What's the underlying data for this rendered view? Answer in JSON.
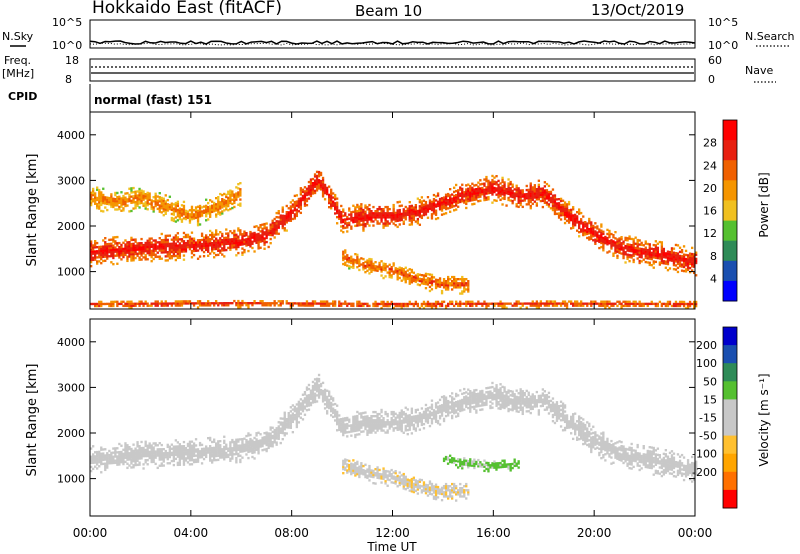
{
  "header": {
    "station": "Hokkaido East (fitACF)",
    "beam": "Beam 10",
    "date": "13/Oct/2019"
  },
  "top_panel": {
    "nsky_label": "N.Sky",
    "nsky_ticks": [
      "10^5",
      "10^0"
    ],
    "nsearch_label": "N.Search",
    "nsearch_ticks": [
      "10^5",
      "10^0"
    ],
    "freq_label": "Freq.",
    "freq_unit": "[MHz]",
    "freq_ticks": [
      "18",
      "8"
    ],
    "nave_label": "Nave",
    "nave_ticks": [
      "60",
      "0"
    ],
    "cpid_label": "CPID",
    "cpid_value": "normal (fast) 151"
  },
  "colors": {
    "power_scale": [
      "#0000ff",
      "#1a4fb0",
      "#2e8b57",
      "#55c030",
      "#f0c020",
      "#f59500",
      "#f06000",
      "#e82010",
      "#ff0000"
    ],
    "velocity_scale": [
      "#ff0000",
      "#ff7000",
      "#ffa500",
      "#ffc030",
      "#c8c8c8",
      "#c8c8c8",
      "#55c030",
      "#2e8b57",
      "#1a4fb0",
      "#0000cc"
    ]
  },
  "chart_data": [
    {
      "type": "heatmap",
      "name": "power",
      "xlabel": "",
      "ylabel": "Slant Range [km]",
      "ylim": [
        180,
        4500
      ],
      "yticks": [
        "1000",
        "2000",
        "3000",
        "4000"
      ],
      "colorbar": {
        "label": "Power [dB]",
        "range": [
          0,
          32
        ],
        "ticks": [
          "4",
          "8",
          "12",
          "16",
          "20",
          "24",
          "28"
        ]
      },
      "bands": [
        {
          "x": [
            0,
            2,
            4,
            6,
            7,
            8,
            9,
            9.5,
            10,
            11,
            12,
            13,
            14,
            15,
            16,
            17,
            18,
            19,
            20,
            21,
            22,
            23,
            24
          ],
          "center": [
            1400,
            1500,
            1550,
            1650,
            1800,
            2300,
            3000,
            2600,
            2100,
            2200,
            2200,
            2300,
            2500,
            2700,
            2800,
            2650,
            2700,
            2200,
            1800,
            1500,
            1400,
            1300,
            1200
          ],
          "width": 300,
          "power": 26
        },
        {
          "x": [
            0,
            1,
            2,
            3,
            4,
            5,
            6
          ],
          "center": [
            2600,
            2500,
            2600,
            2400,
            2200,
            2400,
            2700
          ],
          "width": 250,
          "power": 20
        },
        {
          "x": [
            10,
            11,
            12,
            13,
            14,
            15
          ],
          "center": [
            1300,
            1100,
            1000,
            800,
            700,
            700
          ],
          "width": 200,
          "power": 22
        },
        {
          "x": [
            0,
            6,
            12,
            18,
            24
          ],
          "center": [
            260,
            280,
            260,
            270,
            260
          ],
          "width": 80,
          "power": 24
        }
      ]
    },
    {
      "type": "heatmap",
      "name": "velocity",
      "xlabel": "Time UT",
      "ylabel": "Slant Range [km]",
      "xticks": [
        "00:00",
        "04:00",
        "08:00",
        "12:00",
        "16:00",
        "20:00",
        "00:00"
      ],
      "xlim": [
        0,
        24
      ],
      "ylim": [
        180,
        4500
      ],
      "yticks": [
        "1000",
        "2000",
        "3000",
        "4000"
      ],
      "colorbar": {
        "label": "Velocity [m s⁻¹]",
        "range": [
          -250,
          250
        ],
        "ticks": [
          "200",
          "100",
          "50",
          "15",
          "-15",
          "-50",
          "-100",
          "-200"
        ]
      },
      "bands": [
        {
          "x": [
            0,
            2,
            4,
            6,
            7,
            8,
            9,
            9.5,
            10,
            11,
            12,
            13,
            14,
            15,
            16,
            17,
            18,
            19,
            20,
            21,
            22,
            23,
            24
          ],
          "center": [
            1400,
            1500,
            1550,
            1650,
            1800,
            2300,
            3000,
            2600,
            2100,
            2200,
            2200,
            2300,
            2500,
            2700,
            2800,
            2650,
            2700,
            2200,
            1800,
            1500,
            1400,
            1300,
            1200
          ],
          "width": 300,
          "velocity": 0
        },
        {
          "x": [
            10,
            11,
            12,
            13,
            14,
            15
          ],
          "center": [
            1300,
            1100,
            1000,
            800,
            700,
            700
          ],
          "width": 200,
          "velocity": -40
        },
        {
          "x": [
            14,
            15,
            16,
            17
          ],
          "center": [
            1400,
            1300,
            1250,
            1300
          ],
          "width": 120,
          "velocity": 60
        }
      ]
    }
  ]
}
